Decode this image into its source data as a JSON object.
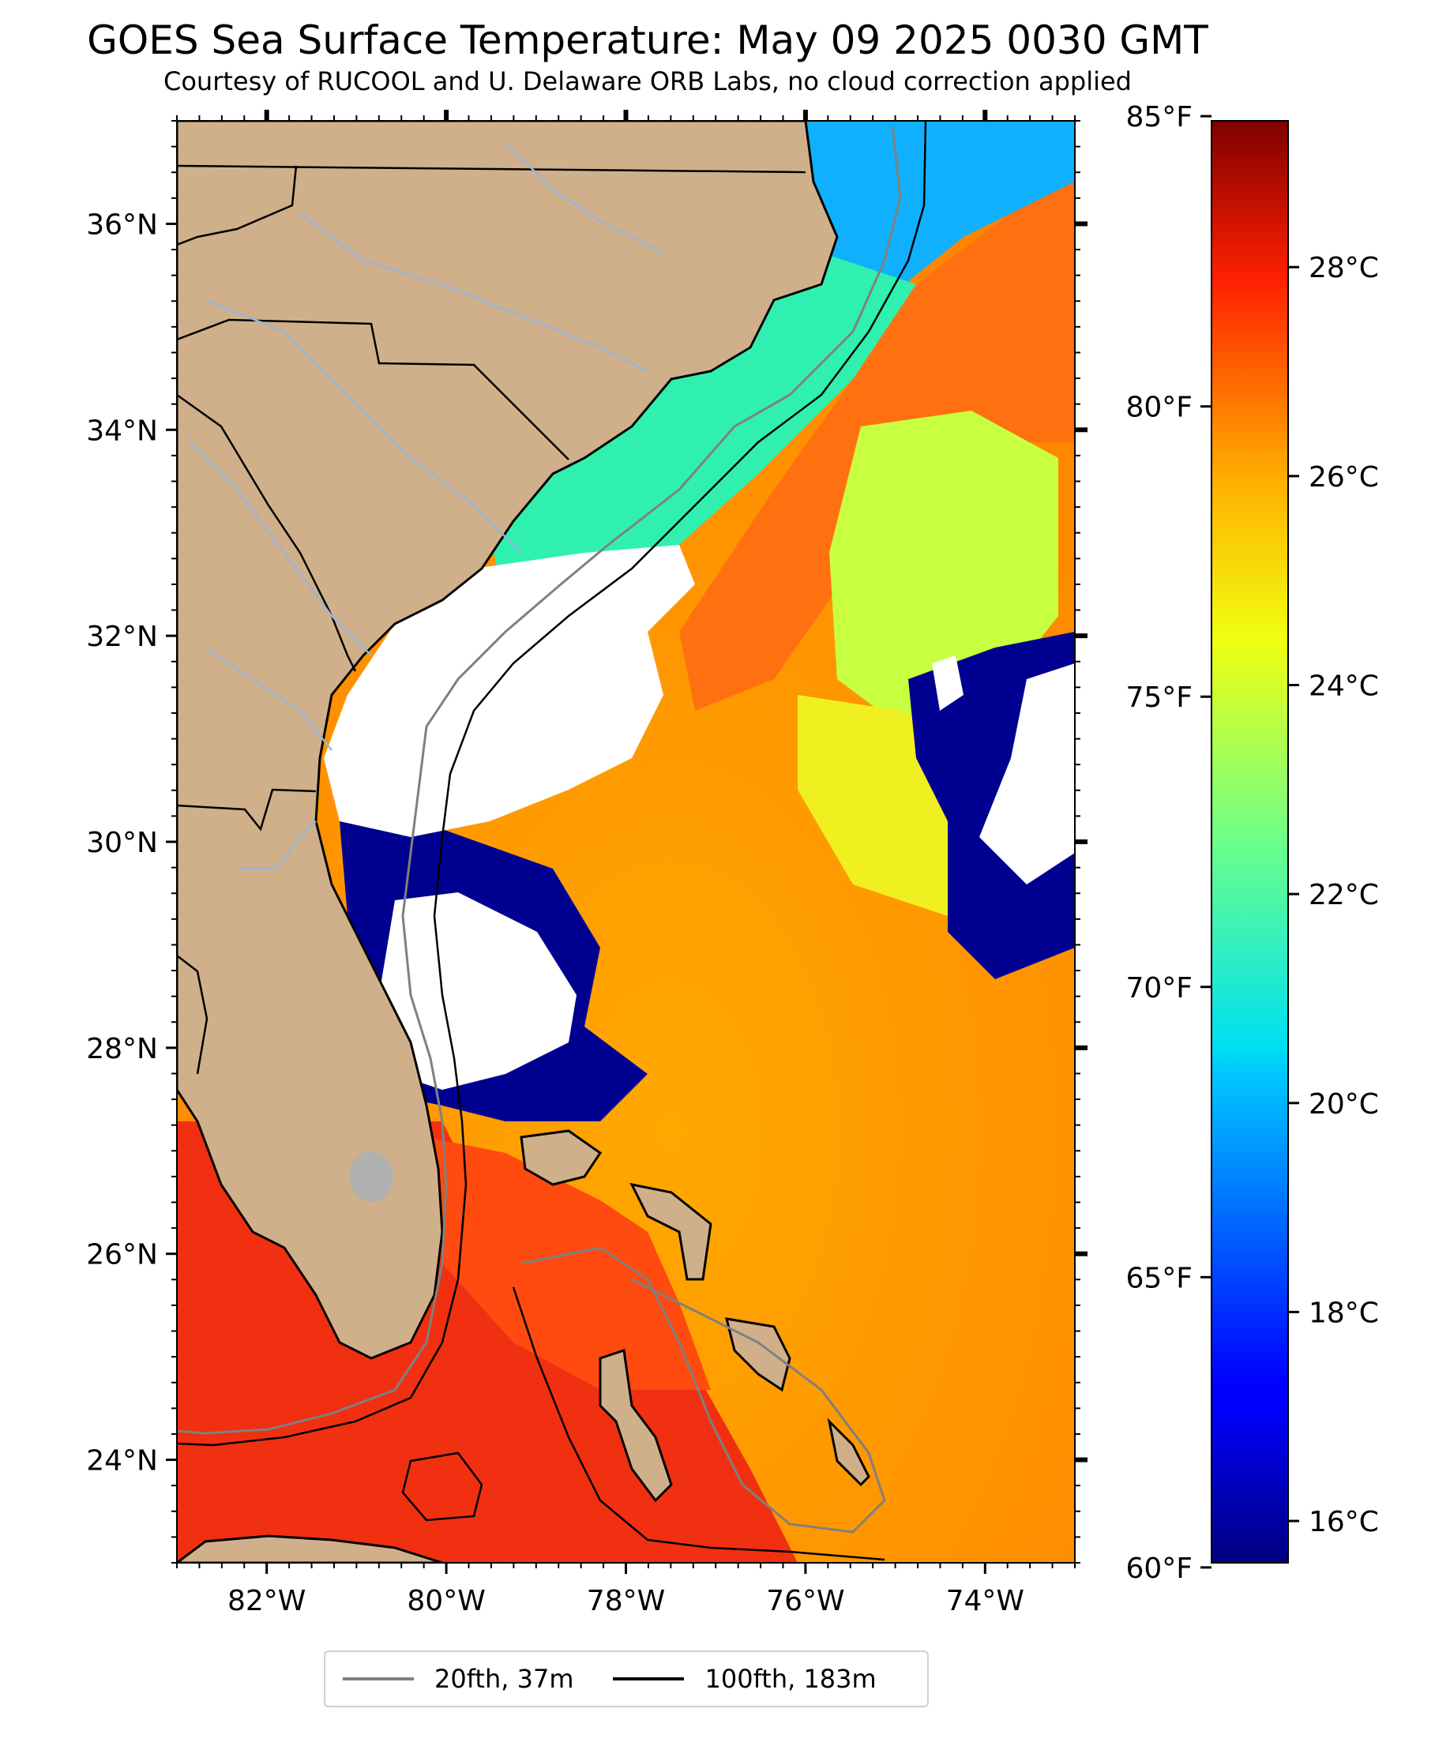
{
  "header": {
    "title": "GOES Sea Surface Temperature: May 09 2025 0030 GMT",
    "subtitle": "Courtesy of RUCOOL and U. Delaware ORB Labs, no cloud correction applied"
  },
  "map": {
    "lon_range": [
      -83,
      -73
    ],
    "lat_range": [
      23,
      37
    ],
    "lon_ticks": [
      {
        "value": -82,
        "label": "82°W"
      },
      {
        "value": -80,
        "label": "80°W"
      },
      {
        "value": -78,
        "label": "78°W"
      },
      {
        "value": -76,
        "label": "76°W"
      },
      {
        "value": -74,
        "label": "74°W"
      }
    ],
    "lat_ticks": [
      {
        "value": 24,
        "label": "24°N"
      },
      {
        "value": 26,
        "label": "26°N"
      },
      {
        "value": 28,
        "label": "28°N"
      },
      {
        "value": 30,
        "label": "30°N"
      },
      {
        "value": 32,
        "label": "32°N"
      },
      {
        "value": 34,
        "label": "34°N"
      },
      {
        "value": 36,
        "label": "36°N"
      }
    ],
    "colors": {
      "land": "#d0b08a",
      "cloud": "#ffffff",
      "lake": "#b0b0b0",
      "river": "#9ab4d8",
      "contour_20fth": "#808080",
      "contour_100fth": "#000000"
    }
  },
  "colorbar": {
    "range_c": [
      15.6,
      29.4
    ],
    "celsius_ticks": [
      {
        "value": 16,
        "label": "16°C"
      },
      {
        "value": 18,
        "label": "18°C"
      },
      {
        "value": 20,
        "label": "20°C"
      },
      {
        "value": 22,
        "label": "22°C"
      },
      {
        "value": 24,
        "label": "24°C"
      },
      {
        "value": 26,
        "label": "26°C"
      },
      {
        "value": 28,
        "label": "28°C"
      }
    ],
    "fahrenheit_ticks": [
      {
        "value": 60,
        "label": "60°F"
      },
      {
        "value": 65,
        "label": "65°F"
      },
      {
        "value": 70,
        "label": "70°F"
      },
      {
        "value": 75,
        "label": "75°F"
      },
      {
        "value": 80,
        "label": "80°F"
      },
      {
        "value": 85,
        "label": "85°F"
      }
    ],
    "colormap": "jet"
  },
  "legend": {
    "items": [
      {
        "label": "20fth, 37m",
        "color": "#808080"
      },
      {
        "label": "100fth, 183m",
        "color": "#000000"
      }
    ]
  }
}
